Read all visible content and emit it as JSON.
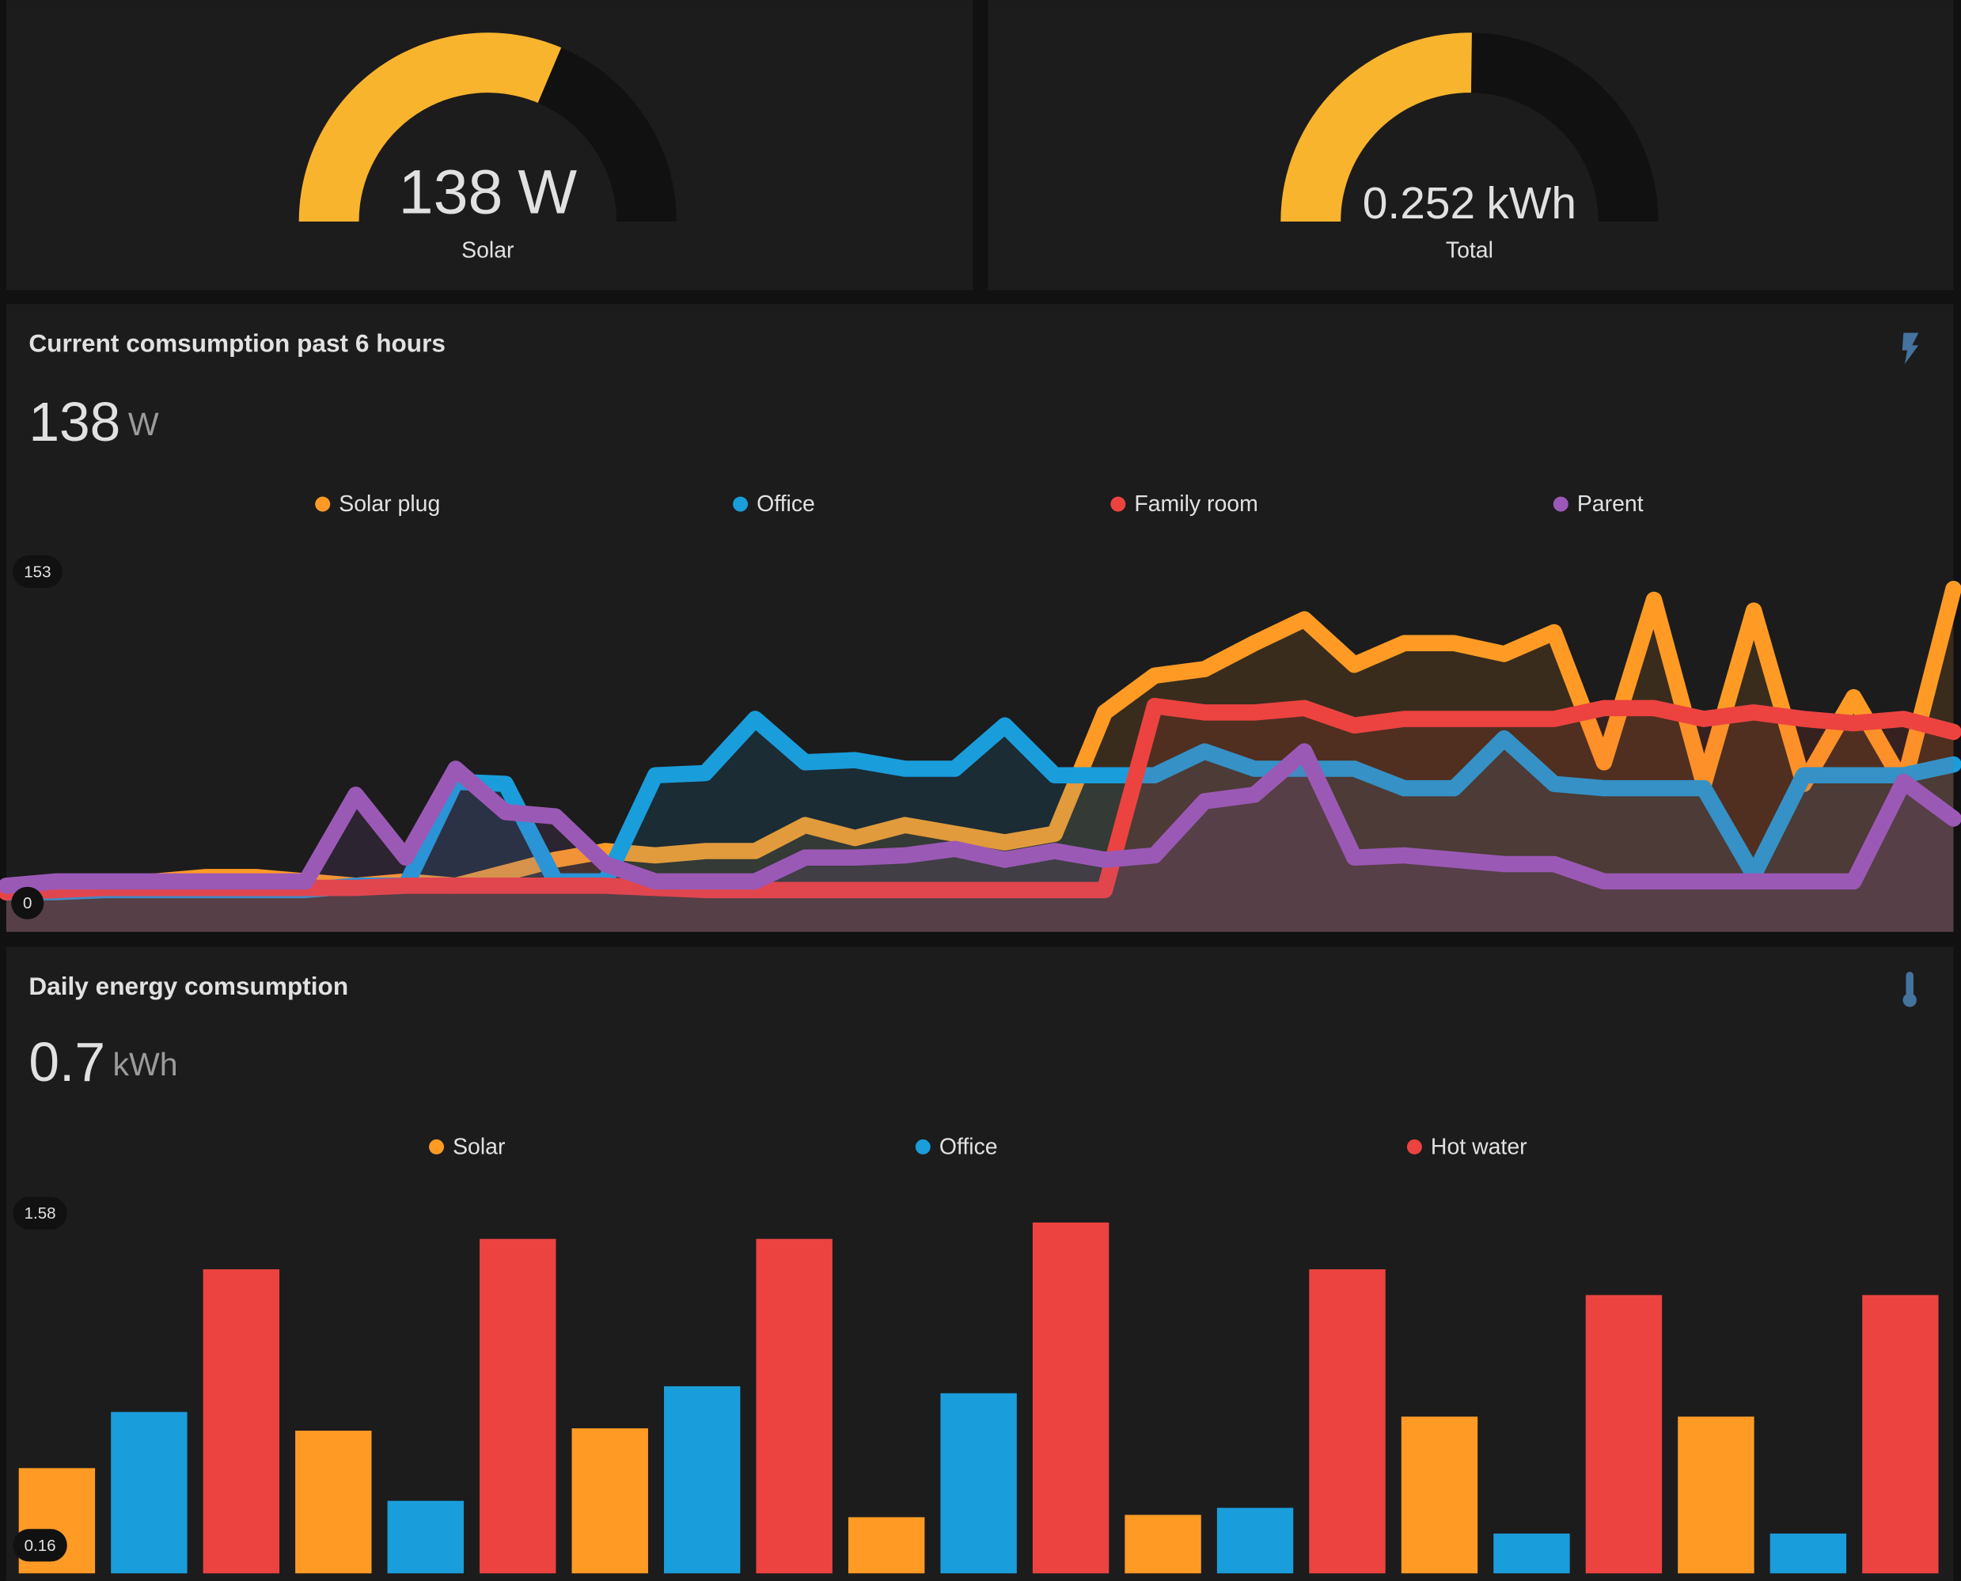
{
  "gauges": [
    {
      "value": 138,
      "unit": "W",
      "label": "Solar",
      "max": 220,
      "color": "#f9b42e"
    },
    {
      "value": 0.252,
      "unit": "kWh",
      "label": "Total",
      "max": 0.5,
      "color": "#f9b42e"
    }
  ],
  "power_card": {
    "title": "Current comsumption past 6 hours",
    "value": 138,
    "unit": "W",
    "chart_data": {
      "type": "line",
      "ylim": [
        0,
        153
      ],
      "yticks": [
        153,
        0
      ],
      "series": [
        {
          "name": "Solar plug",
          "color": "#ff9b25",
          "values": [
            5,
            7,
            9,
            10,
            12,
            12,
            10,
            8,
            10,
            8,
            14,
            20,
            24,
            22,
            24,
            24,
            36,
            30,
            36,
            32,
            28,
            32,
            88,
            105,
            108,
            120,
            131,
            110,
            120,
            120,
            115,
            125,
            65,
            140,
            55,
            135,
            55,
            95,
            55,
            145
          ]
        },
        {
          "name": "Office",
          "color": "#1a9ddb",
          "values": [
            5,
            5,
            6,
            6,
            6,
            6,
            6,
            8,
            8,
            56,
            55,
            10,
            10,
            59,
            60,
            85,
            65,
            66,
            62,
            62,
            82,
            59,
            59,
            59,
            70,
            62,
            62,
            62,
            53,
            53,
            76,
            55,
            53,
            53,
            53,
            13,
            59,
            59,
            59,
            64
          ]
        },
        {
          "name": "Family room",
          "color": "#ec4340",
          "values": [
            5,
            6,
            7,
            7,
            7,
            7,
            7,
            7,
            8,
            8,
            8,
            8,
            8,
            7,
            6,
            6,
            6,
            6,
            6,
            6,
            6,
            6,
            6,
            91,
            88,
            88,
            90,
            82,
            85,
            85,
            85,
            85,
            90,
            90,
            85,
            88,
            85,
            83,
            85,
            79
          ]
        },
        {
          "name": "Parent",
          "color": "#9b59b6",
          "values": [
            8,
            10,
            10,
            10,
            10,
            10,
            10,
            50,
            21,
            62,
            42,
            40,
            18,
            10,
            10,
            10,
            21,
            21,
            22,
            25,
            20,
            24,
            20,
            22,
            47,
            50,
            70,
            21,
            22,
            20,
            18,
            18,
            10,
            10,
            10,
            10,
            10,
            10,
            56,
            39
          ]
        }
      ]
    }
  },
  "energy_card": {
    "title": "Daily energy comsumption",
    "value": 0.7,
    "unit": "kWh",
    "chart_data": {
      "type": "bar",
      "ylim": [
        0.04,
        1.58
      ],
      "yticks": [
        1.58,
        0.16
      ],
      "series": [
        {
          "name": "Solar",
          "color": "#ff9b25",
          "values": [
            0.49,
            0.65,
            0.66,
            0.28,
            0.29,
            0.71,
            0.71
          ]
        },
        {
          "name": "Office",
          "color": "#1a9ddb",
          "values": [
            0.73,
            0.35,
            0.84,
            0.81,
            0.32,
            0.21,
            0.21
          ]
        },
        {
          "name": "Hot water",
          "color": "#ec4340",
          "values": [
            1.34,
            1.47,
            1.47,
            1.54,
            1.34,
            1.23,
            1.23
          ]
        }
      ]
    }
  }
}
